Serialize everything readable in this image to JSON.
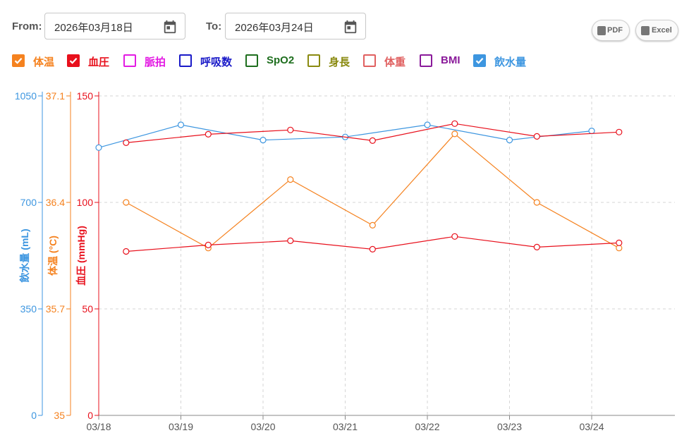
{
  "filter": {
    "from_label": "From:",
    "from_value": "2026年03月18日",
    "to_label": "To:",
    "to_value": "2026年03月24日"
  },
  "export": {
    "pdf_label": "PDF",
    "excel_label": "Excel"
  },
  "legend": [
    {
      "label": "体温",
      "color": "#f5821f",
      "checked": true
    },
    {
      "label": "血圧",
      "color": "#e8101c",
      "checked": true
    },
    {
      "label": "脈拍",
      "color": "#e31be3",
      "checked": false
    },
    {
      "label": "呼吸数",
      "color": "#1a1ac8",
      "checked": false
    },
    {
      "label": "SpO2",
      "color": "#1e6e1e",
      "checked": false
    },
    {
      "label": "身長",
      "color": "#8a8a10",
      "checked": false
    },
    {
      "label": "体重",
      "color": "#e06060",
      "checked": false
    },
    {
      "label": "BMI",
      "color": "#8a1a9a",
      "checked": false
    },
    {
      "label": "飲水量",
      "color": "#3d96e0",
      "checked": true
    }
  ],
  "chart_data": {
    "type": "line",
    "x_ticks": [
      "03/18",
      "03/19",
      "03/20",
      "03/21",
      "03/22",
      "03/23",
      "03/24"
    ],
    "grid": true,
    "axes": [
      {
        "id": "water",
        "label": "飲水量 (mL)",
        "color": "#3d96e0",
        "range": [
          0,
          1050
        ],
        "ticks": [
          "0",
          "350",
          "700",
          "1050"
        ]
      },
      {
        "id": "temp",
        "label": "体温 (°C)",
        "color": "#f5821f",
        "range": [
          35,
          37.1
        ],
        "ticks": [
          "35",
          "35.7",
          "36.4",
          "37.1"
        ]
      },
      {
        "id": "bp",
        "label": "血圧 (mmHg)",
        "color": "#e8101c",
        "range": [
          0,
          150
        ],
        "ticks": [
          "0",
          "50",
          "100",
          "150"
        ]
      }
    ],
    "series": [
      {
        "name": "飲水量",
        "axis": "water",
        "color": "#3d96e0",
        "x": [
          "2026-03-18 00:00",
          "2026-03-19 00:00",
          "2026-03-20 00:00",
          "2026-03-21 00:00",
          "2026-03-22 00:00",
          "2026-03-23 00:00",
          "2026-03-24 00:00"
        ],
        "y": [
          880,
          955,
          905,
          915,
          955,
          905,
          935
        ]
      },
      {
        "name": "体温",
        "axis": "temp",
        "color": "#f5821f",
        "x": [
          "2026-03-18 08:00",
          "2026-03-19 08:00",
          "2026-03-20 08:00",
          "2026-03-21 08:00",
          "2026-03-22 08:00",
          "2026-03-23 08:00",
          "2026-03-24 08:00"
        ],
        "y": [
          36.4,
          36.1,
          36.55,
          36.25,
          36.85,
          36.4,
          36.1
        ]
      },
      {
        "name": "血圧",
        "axis": "bp",
        "color": "#e8101c",
        "x": [
          "2026-03-18 08:00",
          "2026-03-19 08:00",
          "2026-03-20 08:00",
          "2026-03-21 08:00",
          "2026-03-22 08:00",
          "2026-03-23 08:00",
          "2026-03-24 08:00"
        ],
        "y": [
          128,
          132,
          134,
          129,
          137,
          131,
          133
        ]
      },
      {
        "name": "血圧",
        "axis": "bp",
        "color": "#e8101c",
        "x": [
          "2026-03-18 08:00",
          "2026-03-19 08:00",
          "2026-03-20 08:00",
          "2026-03-21 08:00",
          "2026-03-22 08:00",
          "2026-03-23 08:00",
          "2026-03-24 08:00"
        ],
        "y": [
          77,
          80,
          82,
          78,
          84,
          79,
          81
        ]
      }
    ]
  }
}
